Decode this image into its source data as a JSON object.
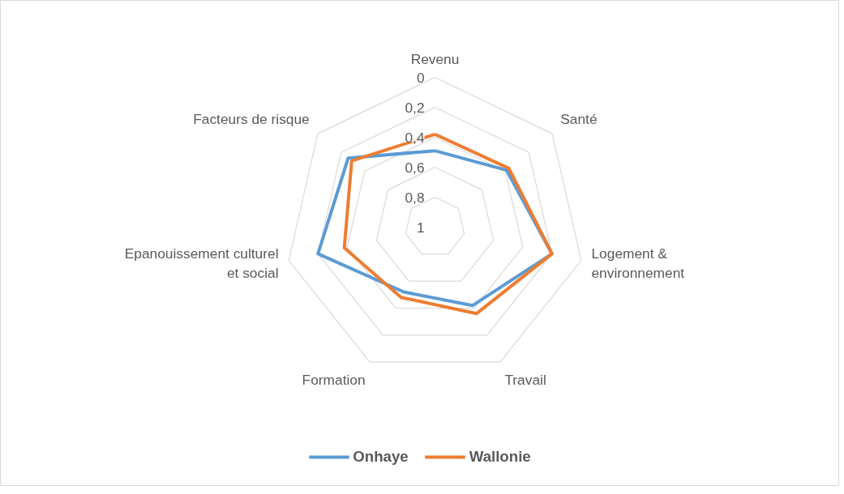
{
  "chart_data": {
    "type": "radar",
    "categories": [
      "Revenu",
      "Santé",
      "Logement & environnement",
      "Travail",
      "Formation",
      "Epanouissement culturel et social",
      "Facteurs de risque"
    ],
    "series": [
      {
        "name": "Onhaye",
        "color": "#5b9bd5",
        "values": [
          0.49,
          0.39,
          0.2,
          0.42,
          0.52,
          0.2,
          0.26
        ]
      },
      {
        "name": "Wallonie",
        "color": "#ed7d31",
        "values": [
          0.38,
          0.37,
          0.2,
          0.36,
          0.48,
          0.38,
          0.29
        ]
      }
    ],
    "ylim": [
      1,
      0
    ],
    "yticks": [
      {
        "value": 0,
        "label": "0"
      },
      {
        "value": 0.2,
        "label": "0,2"
      },
      {
        "value": 0.4,
        "label": "0,4"
      },
      {
        "value": 0.6,
        "label": "0,6"
      },
      {
        "value": 0.8,
        "label": "0,8"
      },
      {
        "value": 1,
        "label": "1"
      }
    ],
    "grid": true,
    "legend": "bottom"
  }
}
